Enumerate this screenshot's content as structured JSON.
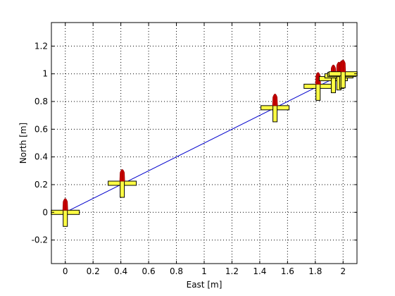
{
  "chart_data": {
    "type": "line",
    "title": "",
    "xlabel": "East [m]",
    "ylabel": "North [m]",
    "xlim": [
      -0.1,
      2.1
    ],
    "ylim": [
      -0.37,
      1.37
    ],
    "xticks": [
      0,
      0.2,
      0.4,
      0.6,
      0.8,
      1,
      1.2,
      1.4,
      1.6,
      1.8,
      2
    ],
    "xtick_labels": [
      "0",
      "0.2",
      "0.4",
      "0.6",
      "0.8",
      "1",
      "1.2",
      "1.4",
      "1.6",
      "1.8",
      "2"
    ],
    "yticks": [
      -0.2,
      0,
      0.2,
      0.4,
      0.6,
      0.8,
      1,
      1.2
    ],
    "ytick_labels": [
      "-0.2",
      "0",
      "0.2",
      "0.4",
      "0.6",
      "0.8",
      "1",
      "1.2"
    ],
    "grid": true,
    "series": [
      {
        "color": "#0000cc",
        "x": [
          0,
          1.5,
          1.82,
          1.93,
          1.97,
          1.99,
          2.0
        ],
        "y": [
          0,
          0.75,
          0.91,
          0.965,
          0.985,
          0.995,
          1.0
        ]
      }
    ],
    "markers": [
      {
        "x": 0,
        "y": 0
      },
      {
        "x": 0.41,
        "y": 0.21
      },
      {
        "x": 1.51,
        "y": 0.755
      },
      {
        "x": 1.82,
        "y": 0.91
      },
      {
        "x": 1.93,
        "y": 0.965
      },
      {
        "x": 1.97,
        "y": 0.985
      },
      {
        "x": 1.99,
        "y": 0.995
      },
      {
        "x": 2.0,
        "y": 1.0
      }
    ],
    "marker_colors": {
      "body": "#ffff44",
      "outline": "#000000",
      "flame": "#cc0000",
      "flame_tip": "#990000"
    }
  }
}
